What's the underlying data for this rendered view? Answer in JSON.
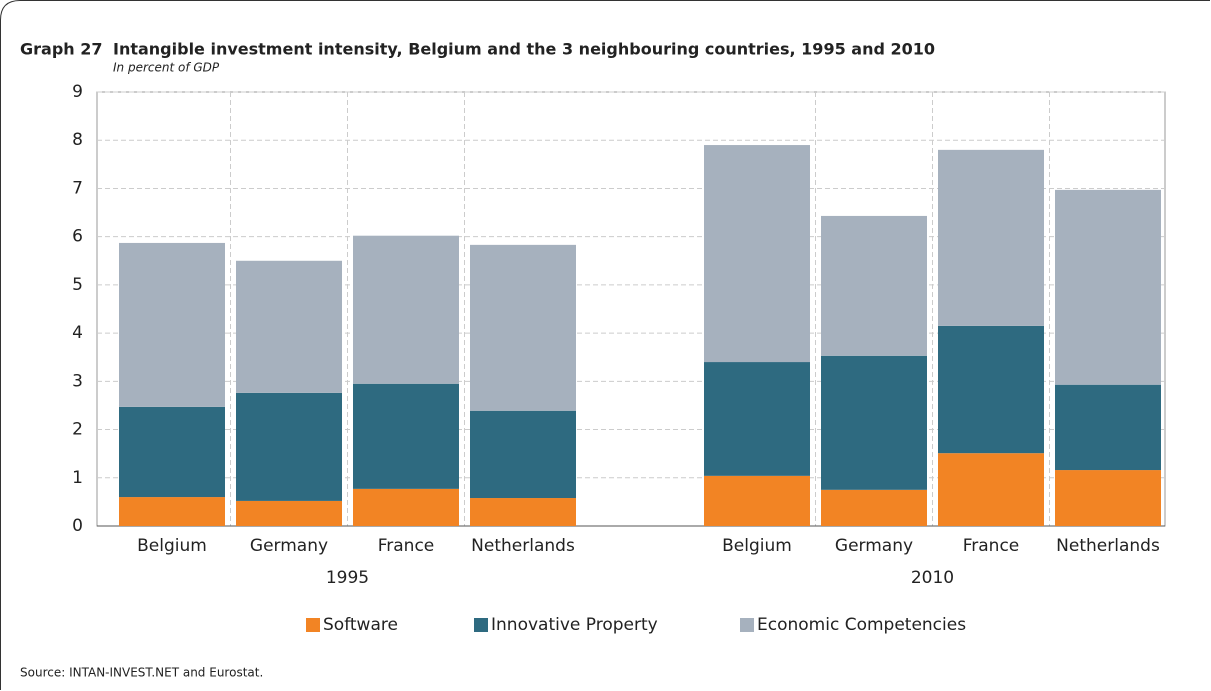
{
  "chart_data": {
    "type": "stacked_bar",
    "label": "Graph 27",
    "title": "Intangible investment intensity, Belgium and the 3 neighbouring countries, 1995 and 2010",
    "subtitle": "In percent of GDP",
    "source": "Source: INTAN-INVEST.NET and Eurostat.",
    "categories": [
      "Belgium",
      "Germany",
      "France",
      "Netherlands",
      null,
      "Belgium",
      "Germany",
      "France",
      "Netherlands"
    ],
    "groups": [
      "1995",
      "2010"
    ],
    "series": [
      {
        "name": "Software",
        "color": "#f28424",
        "values": [
          0.6,
          0.52,
          0.77,
          0.58,
          null,
          1.04,
          0.75,
          1.51,
          1.16
        ]
      },
      {
        "name": "Innovative Property",
        "color": "#2e6a80",
        "values": [
          1.87,
          2.24,
          2.18,
          1.81,
          null,
          2.36,
          2.78,
          2.64,
          1.77
        ]
      },
      {
        "name": "Economic Competencies",
        "color": "#a6b1be",
        "values": [
          3.4,
          2.74,
          3.07,
          3.44,
          null,
          4.5,
          2.9,
          3.65,
          4.04
        ]
      }
    ],
    "ylim": [
      0,
      9
    ],
    "yticks": [
      0,
      1,
      2,
      3,
      4,
      5,
      6,
      7,
      8,
      9
    ],
    "grid": true,
    "legend": "bottom"
  }
}
